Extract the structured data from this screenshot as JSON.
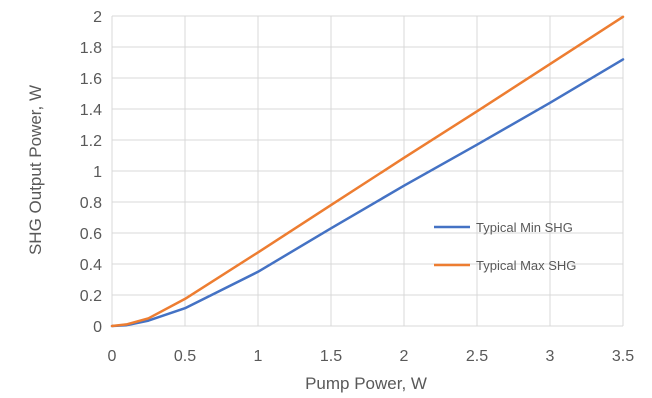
{
  "chart_data": {
    "type": "line",
    "title": "",
    "xlabel": "Pump Power, W",
    "ylabel": "SHG Output Power, W",
    "xlim": [
      0,
      3.5
    ],
    "ylim": [
      0,
      2
    ],
    "x_ticks": [
      "0",
      "0.5",
      "1",
      "1.5",
      "2",
      "2.5",
      "3",
      "3.5"
    ],
    "y_ticks": [
      "0",
      "0.2",
      "0.4",
      "0.6",
      "0.8",
      "1",
      "1.2",
      "1.4",
      "1.6",
      "1.8",
      "2"
    ],
    "grid": true,
    "legend_position": "right-middle",
    "series": [
      {
        "name": "Typical Min SHG",
        "color": "#4472C4",
        "x": [
          0,
          0.1,
          0.25,
          0.5,
          1,
          1.5,
          2,
          2.5,
          3,
          3.5
        ],
        "y": [
          0,
          0.005,
          0.035,
          0.115,
          0.35,
          0.63,
          0.905,
          1.17,
          1.44,
          1.72
        ]
      },
      {
        "name": "Typical Max SHG",
        "color": "#ED7D31",
        "x": [
          0,
          0.1,
          0.25,
          0.5,
          1,
          1.5,
          2,
          2.5,
          3,
          3.5
        ],
        "y": [
          0,
          0.01,
          0.05,
          0.175,
          0.475,
          0.78,
          1.085,
          1.385,
          1.69,
          1.995
        ]
      }
    ]
  }
}
